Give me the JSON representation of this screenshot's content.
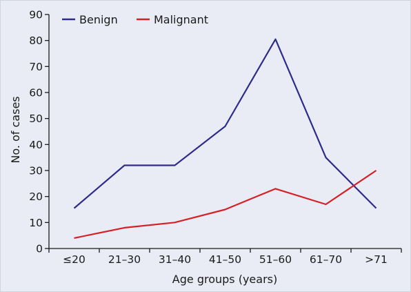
{
  "chart_data": {
    "type": "line",
    "categories": [
      "≤20",
      "21–30",
      "31–40",
      "41–50",
      "51–60",
      "61–70",
      ">71"
    ],
    "series": [
      {
        "name": "Benign",
        "color": "#2e2a8a",
        "values": [
          15.5,
          32,
          32,
          47,
          80.5,
          35,
          15.5
        ]
      },
      {
        "name": "Malignant",
        "color": "#d42027",
        "values": [
          4,
          8,
          10,
          15,
          23,
          17,
          30
        ]
      }
    ],
    "xlabel": "Age groups (years)",
    "ylabel": "No. of cases",
    "ylim": [
      0,
      90
    ],
    "yticks": [
      0,
      10,
      20,
      30,
      40,
      50,
      60,
      70,
      80,
      90
    ],
    "grid": false,
    "legend_position": "top-left"
  }
}
